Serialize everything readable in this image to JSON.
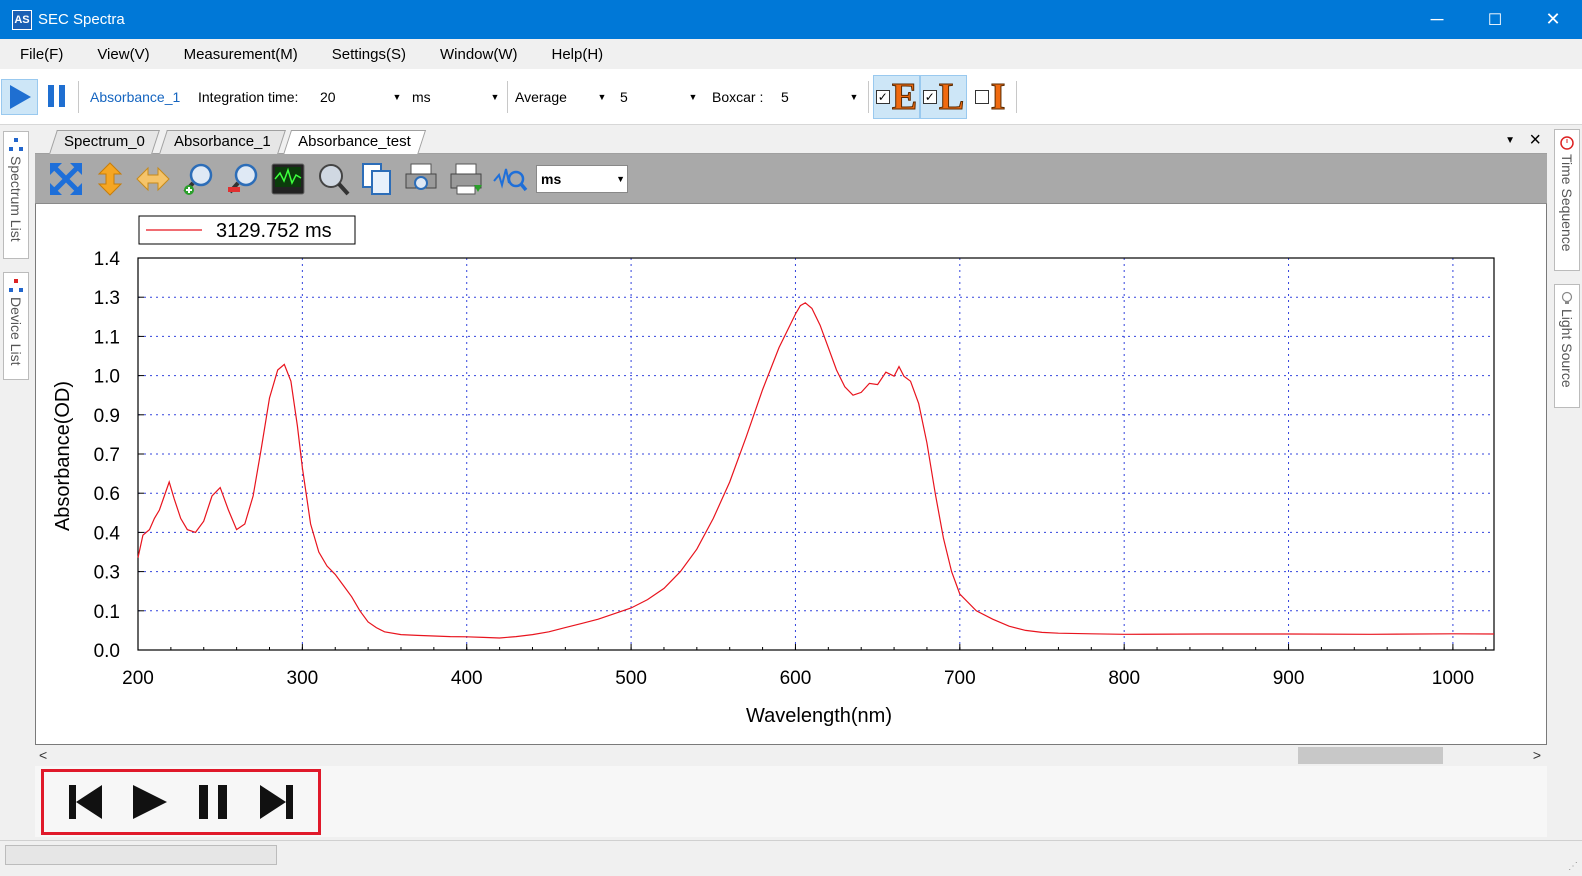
{
  "window": {
    "title": "SEC Spectra",
    "app_icon": "AS",
    "minimize": "─",
    "maximize": "☐",
    "close": "✕"
  },
  "menu": [
    "File(F)",
    "View(V)",
    "Measurement(M)",
    "Settings(S)",
    "Window(W)",
    "Help(H)"
  ],
  "toolbar": {
    "play_icon": "play-icon",
    "pause_icon": "pause-icon",
    "active_item": "Absorbance_1",
    "integration_label": "Integration time:",
    "integration_value": "20",
    "integration_unit": "ms",
    "average_label": "Average",
    "average_value": "5",
    "boxcar_label": "Boxcar :",
    "boxcar_value": "5",
    "eli": [
      {
        "letter": "E",
        "checked": true
      },
      {
        "letter": "L",
        "checked": true
      },
      {
        "letter": "I",
        "checked": false
      }
    ],
    "accent": "#1565c0"
  },
  "left_panels": [
    "Spectrum List",
    "Device List"
  ],
  "right_panels": [
    "Time Sequence",
    "Light Source"
  ],
  "doc_tabs": [
    "Spectrum_0",
    "Absorbance_1",
    "Absorbance_test"
  ],
  "active_doc_tab": "Absorbance_test",
  "plot_toolbar": {
    "tools": [
      "fit-all-icon",
      "vertical-zoom-icon",
      "horizontal-zoom-icon",
      "zoom-in-icon",
      "zoom-out-icon",
      "oscilloscope-icon",
      "magnifier-icon",
      "copy-icon",
      "print-preview-icon",
      "print-icon",
      "peak-search-icon"
    ],
    "unit_value": "ms"
  },
  "chart_data": {
    "type": "line",
    "title": "",
    "xlabel": "Wavelength(nm)",
    "ylabel": "Absorbance(OD)",
    "xlim": [
      200,
      1025
    ],
    "ylim": [
      0.0,
      1.4
    ],
    "x_ticks": [
      "200",
      "300",
      "400",
      "500",
      "600",
      "700",
      "800",
      "900",
      "1000"
    ],
    "y_ticks": [
      "0.0",
      "0.1",
      "0.3",
      "0.4",
      "0.6",
      "0.7",
      "0.9",
      "1.0",
      "1.1",
      "1.3",
      "1.4"
    ],
    "grid": true,
    "legend_position": "top-left",
    "series": [
      {
        "name": "3129.752 ms",
        "color": "#e8141e",
        "x": [
          200,
          203,
          207,
          210,
          213,
          216,
          219,
          222,
          226,
          230,
          235,
          240,
          245,
          250,
          255,
          260,
          265,
          270,
          275,
          280,
          285,
          289,
          293,
          297,
          300,
          305,
          310,
          315,
          320,
          325,
          330,
          335,
          340,
          345,
          350,
          360,
          370,
          380,
          390,
          400,
          410,
          420,
          430,
          440,
          450,
          460,
          470,
          480,
          490,
          500,
          510,
          520,
          530,
          540,
          550,
          560,
          570,
          580,
          590,
          600,
          603,
          606,
          610,
          615,
          620,
          625,
          630,
          635,
          640,
          645,
          650,
          655,
          660,
          663,
          666,
          670,
          675,
          680,
          685,
          690,
          695,
          700,
          710,
          720,
          730,
          740,
          750,
          760,
          780,
          800,
          850,
          900,
          950,
          1000,
          1025
        ],
        "y": [
          0.33,
          0.41,
          0.43,
          0.47,
          0.5,
          0.55,
          0.6,
          0.54,
          0.47,
          0.43,
          0.42,
          0.46,
          0.55,
          0.58,
          0.5,
          0.43,
          0.45,
          0.55,
          0.72,
          0.9,
          1.0,
          1.02,
          0.96,
          0.8,
          0.65,
          0.45,
          0.35,
          0.3,
          0.27,
          0.23,
          0.19,
          0.14,
          0.1,
          0.08,
          0.065,
          0.055,
          0.052,
          0.05,
          0.048,
          0.047,
          0.045,
          0.043,
          0.048,
          0.055,
          0.065,
          0.08,
          0.095,
          0.11,
          0.13,
          0.15,
          0.18,
          0.22,
          0.28,
          0.36,
          0.47,
          0.6,
          0.76,
          0.93,
          1.08,
          1.2,
          1.23,
          1.24,
          1.22,
          1.16,
          1.08,
          1.0,
          0.94,
          0.91,
          0.92,
          0.94,
          0.96,
          0.98,
          0.99,
          1.0,
          0.99,
          0.96,
          0.88,
          0.74,
          0.56,
          0.4,
          0.28,
          0.2,
          0.14,
          0.11,
          0.085,
          0.07,
          0.063,
          0.06,
          0.058,
          0.056,
          0.057,
          0.057,
          0.056,
          0.058,
          0.057
        ]
      }
    ]
  },
  "playback": [
    "skip-to-start-icon",
    "play-icon",
    "pause-icon",
    "skip-to-end-icon"
  ],
  "scroll": {
    "left_arrow": "<",
    "right_arrow": ">"
  }
}
